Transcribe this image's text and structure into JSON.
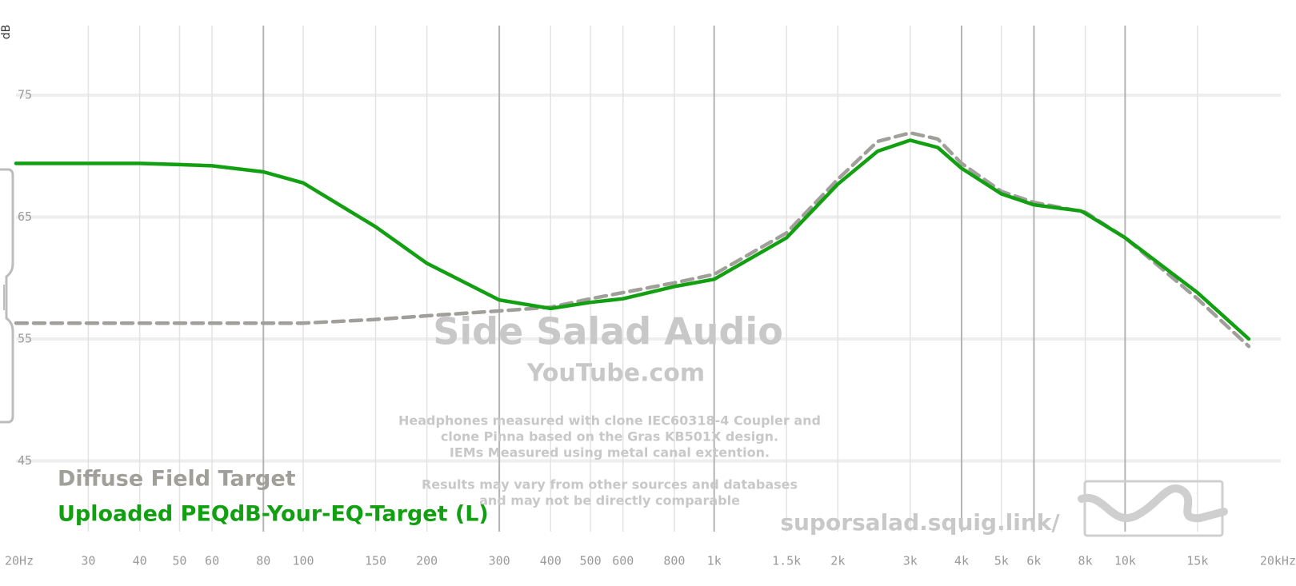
{
  "chart_data": {
    "type": "line",
    "y_label": "dB",
    "x_log": true,
    "xlim": [
      20,
      20000
    ],
    "ylim": [
      39.2,
      80.7
    ],
    "xticks": [
      {
        "value": 20,
        "label": "20Hz"
      },
      30,
      40,
      50,
      60,
      80,
      100,
      150,
      200,
      300,
      400,
      500,
      600,
      800,
      {
        "value": 1000,
        "label": "1k"
      },
      {
        "value": 1500,
        "label": "1.5k"
      },
      {
        "value": 2000,
        "label": "2k"
      },
      {
        "value": 3000,
        "label": "3k"
      },
      {
        "value": 4000,
        "label": "4k"
      },
      {
        "value": 5000,
        "label": "5k"
      },
      {
        "value": 6000,
        "label": "6k"
      },
      {
        "value": 8000,
        "label": "8k"
      },
      {
        "value": 10000,
        "label": "10k"
      },
      {
        "value": 15000,
        "label": "15k"
      },
      {
        "value": 20000,
        "label": "20kHz"
      }
    ],
    "xticks_emphasized": [
      80,
      300,
      1000,
      4000,
      6000,
      10000
    ],
    "yticks": [
      45,
      55,
      65,
      75
    ],
    "grid": true,
    "legend": "bottom-left",
    "series": [
      {
        "name": "Diffuse Field Target",
        "color": "#a09f9a",
        "dashed": true,
        "x": [
          20,
          50,
          100,
          150,
          200,
          300,
          400,
          500,
          600,
          800,
          1000,
          1500,
          2000,
          2500,
          3000,
          3500,
          4000,
          5000,
          6000,
          8000,
          10000,
          15000,
          20000
        ],
        "values": [
          56.3,
          56.3,
          56.3,
          56.6,
          56.9,
          57.3,
          57.6,
          58.3,
          58.8,
          59.6,
          60.3,
          63.7,
          68.1,
          71.2,
          71.9,
          71.4,
          69.4,
          67.1,
          66.2,
          65.4,
          63.3,
          58.3,
          54.4
        ]
      },
      {
        "name": "Uploaded PEQdB-Your-EQ-Target (L)",
        "color": "#12a012",
        "dashed": false,
        "x": [
          20,
          30,
          40,
          50,
          60,
          80,
          100,
          150,
          200,
          300,
          400,
          500,
          600,
          800,
          1000,
          1500,
          2000,
          2500,
          3000,
          3500,
          4000,
          5000,
          6000,
          7000,
          7800,
          8000,
          10000,
          15000,
          20000
        ],
        "values": [
          69.4,
          69.4,
          69.4,
          69.3,
          69.2,
          68.7,
          67.8,
          64.2,
          61.2,
          58.2,
          57.5,
          58.0,
          58.3,
          59.3,
          59.9,
          63.3,
          67.7,
          70.4,
          71.3,
          70.7,
          69.0,
          66.9,
          66.0,
          65.7,
          65.5,
          65.3,
          63.3,
          58.8,
          55.0
        ]
      }
    ],
    "watermark": {
      "title": "Side Salad Audio",
      "subtitle": "YouTube.com",
      "notes": [
        "Headphones measured with clone IEC60318-4 Coupler and",
        "clone Pinna based on the Gras KB501X design.",
        "IEMs Measured using metal canal extention.",
        "",
        "Results may vary from other sources and databases",
        "and may not be directly comparable"
      ],
      "url": "suporsalad.squig.link/"
    }
  }
}
